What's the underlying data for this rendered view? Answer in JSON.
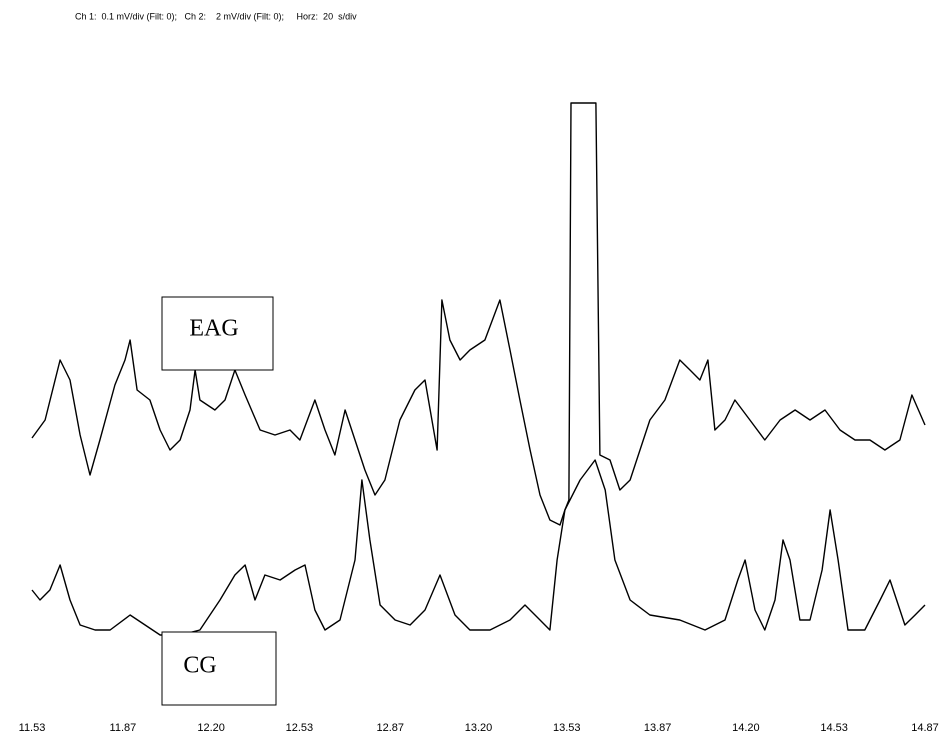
{
  "chart_data": {
    "type": "line",
    "title": "Ch 1:  0.1 mV/div (Filt: 0);   Ch 2:    2 mV/div (Filt: 0);     Horz:  20  s/div",
    "xlim": [
      11.53,
      14.87
    ],
    "xticks": [
      11.53,
      11.87,
      {
        "value": 12.2,
        "label": "12.20"
      },
      12.53,
      12.87,
      {
        "value": 13.2,
        "label": "13.20"
      },
      13.53,
      13.87,
      {
        "value": 14.2,
        "label": "14.20"
      },
      14.53,
      14.87
    ],
    "ylim": [
      0,
      580
    ],
    "series": [
      {
        "name": "EAG",
        "color": "#000000",
        "x": [
          11.53,
          11.579,
          11.635,
          11.672,
          11.71,
          11.747,
          11.784,
          11.84,
          11.878,
          11.897,
          11.923,
          11.971,
          12.009,
          12.046,
          12.084,
          12.121,
          12.14,
          12.158,
          12.214,
          12.252,
          12.289,
          12.327,
          12.383,
          12.439,
          12.495,
          12.532,
          12.588,
          12.626,
          12.663,
          12.701,
          12.738,
          12.775,
          12.813,
          12.85,
          12.906,
          12.962,
          13.0,
          13.045,
          13.063,
          13.093,
          13.131,
          13.168,
          13.224,
          13.28,
          13.318,
          13.355,
          13.393,
          13.43,
          13.467,
          13.505,
          13.523,
          13.538,
          13.546,
          13.639,
          13.654,
          13.692,
          13.729,
          13.767,
          13.841,
          13.897,
          13.953,
          13.991,
          14.028,
          14.058,
          14.084,
          14.122,
          14.159,
          14.215,
          14.271,
          14.328,
          14.384,
          14.44,
          14.496,
          14.552,
          14.608,
          14.664,
          14.72,
          14.776,
          14.821,
          14.87
        ],
        "values": [
          242,
          260,
          320,
          300,
          245,
          205,
          240,
          295,
          320,
          340,
          290,
          280,
          250,
          230,
          240,
          270,
          310,
          280,
          270,
          280,
          310,
          285,
          250,
          245,
          250,
          240,
          280,
          250,
          225,
          270,
          240,
          210,
          185,
          200,
          260,
          290,
          300,
          230,
          380,
          340,
          320,
          330,
          340,
          380,
          330,
          280,
          230,
          185,
          160,
          155,
          170,
          180,
          577,
          577,
          225,
          220,
          190,
          200,
          260,
          280,
          320,
          310,
          300,
          320,
          250,
          260,
          280,
          260,
          240,
          260,
          270,
          260,
          270,
          250,
          240,
          240,
          230,
          240,
          285,
          255
        ]
      },
      {
        "name": "CG",
        "color": "#000000",
        "x": [
          11.53,
          11.56,
          11.597,
          11.635,
          11.672,
          11.71,
          11.766,
          11.822,
          11.897,
          11.953,
          12.009,
          12.084,
          12.158,
          12.233,
          12.289,
          12.327,
          12.364,
          12.401,
          12.458,
          12.514,
          12.551,
          12.588,
          12.626,
          12.682,
          12.738,
          12.764,
          12.794,
          12.832,
          12.888,
          12.944,
          13.0,
          13.056,
          13.112,
          13.168,
          13.243,
          13.318,
          13.374,
          13.43,
          13.467,
          13.494,
          13.523,
          13.58,
          13.636,
          13.674,
          13.71,
          13.767,
          13.841,
          13.953,
          14.047,
          14.122,
          14.17,
          14.197,
          14.234,
          14.271,
          14.309,
          14.339,
          14.365,
          14.402,
          14.44,
          14.485,
          14.515,
          14.545,
          14.582,
          14.645,
          14.702,
          14.739,
          14.795,
          14.833,
          14.87
        ],
        "values": [
          90,
          80,
          90,
          115,
          80,
          55,
          50,
          50,
          65,
          55,
          45,
          45,
          50,
          80,
          105,
          115,
          80,
          105,
          100,
          110,
          115,
          70,
          50,
          60,
          120,
          200,
          140,
          75,
          60,
          55,
          70,
          105,
          65,
          50,
          50,
          60,
          75,
          60,
          50,
          120,
          170,
          200,
          220,
          190,
          120,
          80,
          65,
          60,
          50,
          60,
          100,
          120,
          70,
          50,
          80,
          140,
          120,
          60,
          60,
          110,
          170,
          120,
          50,
          50,
          80,
          100,
          55,
          65,
          75
        ]
      }
    ]
  }
}
